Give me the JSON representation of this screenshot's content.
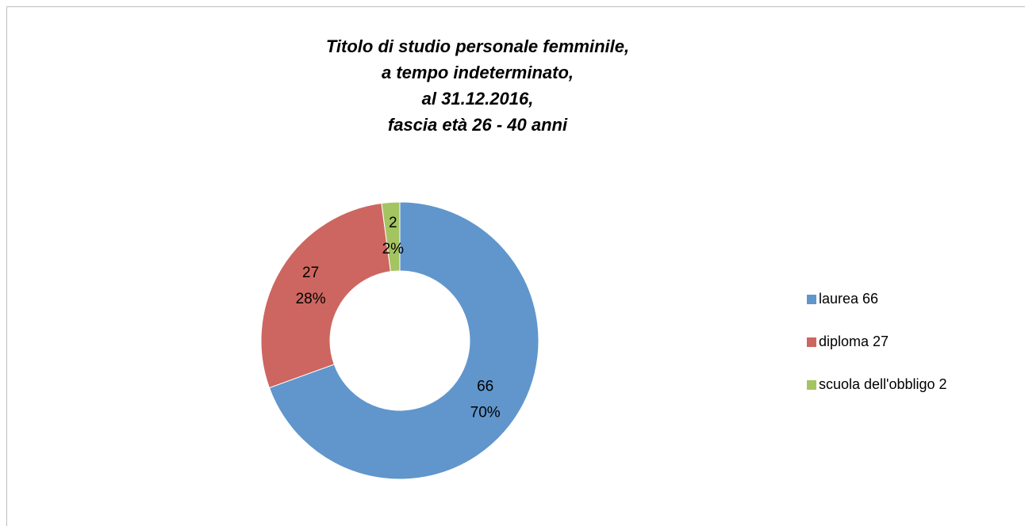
{
  "chart_data": {
    "type": "donut",
    "title": [
      "Titolo di studio personale femminile,",
      "a tempo indeterminato,",
      "al 31.12.2016,",
      "fascia età 26 - 40 anni"
    ],
    "categories": [
      "laurea 66",
      "diploma 27",
      "scuola dell'obbligo 2"
    ],
    "values": [
      66,
      27,
      2
    ],
    "percent_labels": [
      "70%",
      "28%",
      "2%"
    ],
    "colors": [
      "#6096cc",
      "#cd6660",
      "#a4c462"
    ],
    "legend": "right"
  }
}
